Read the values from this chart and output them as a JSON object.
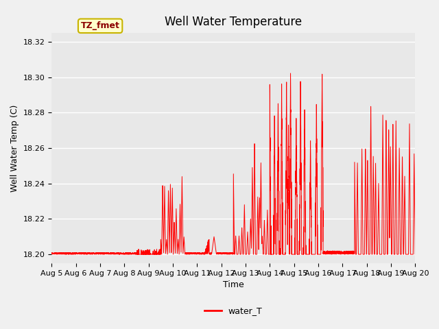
{
  "title": "Well Water Temperature",
  "xlabel": "Time",
  "ylabel": "Well Water Temp (C)",
  "ylim": [
    18.195,
    18.325
  ],
  "xlim_days": [
    0,
    15
  ],
  "line_color": "#ff0000",
  "line_width": 0.7,
  "plot_bg_color": "#e8e8e8",
  "fig_bg_color": "#f0f0f0",
  "legend_label": "water_T",
  "annotation_text": "TZ_fmet",
  "annotation_bg": "#ffffcc",
  "annotation_border": "#8b0000",
  "grid_color": "#ffffff",
  "tick_labels": [
    "Aug 5",
    "Aug 6",
    "Aug 7",
    "Aug 8",
    "Aug 9",
    "Aug 10",
    "Aug 11",
    "Aug 12",
    "Aug 13",
    "Aug 14",
    "Aug 15",
    "Aug 16",
    "Aug 17",
    "Aug 18",
    "Aug 19",
    "Aug 20"
  ],
  "tick_positions": [
    0,
    1,
    2,
    3,
    4,
    5,
    6,
    7,
    8,
    9,
    10,
    11,
    12,
    13,
    14,
    15
  ],
  "base_temp": 18.2,
  "max_temp": 18.305,
  "title_fontsize": 12,
  "label_fontsize": 9,
  "tick_fontsize": 8
}
